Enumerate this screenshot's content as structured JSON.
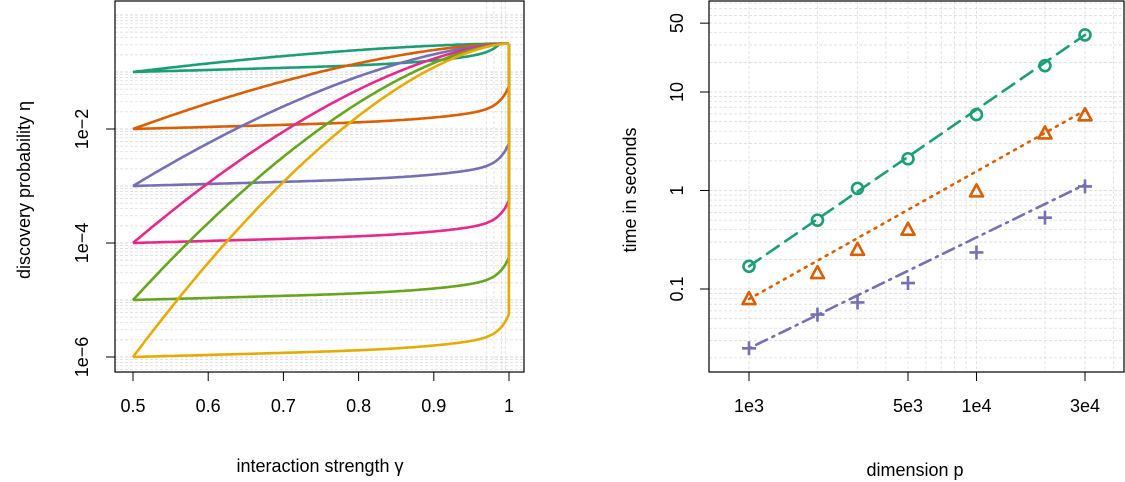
{
  "chart_data": [
    {
      "type": "line",
      "title": "",
      "xlabel": "interaction strength γ",
      "ylabel": "discovery probability η",
      "xlim": [
        0.5,
        1.0
      ],
      "ylim_log10": [
        -6,
        -0.5
      ],
      "y_scale": "log",
      "grid": true,
      "x_ticks": [
        0.5,
        0.6,
        0.7,
        0.8,
        0.9,
        1.0
      ],
      "x_tick_labels": [
        "0.5",
        "0.6",
        "0.7",
        "0.8",
        "0.9",
        "1"
      ],
      "y_ticks_log10": [
        -6,
        -4,
        -2
      ],
      "y_tick_labels": [
        "1e−6",
        "1e−4",
        "1e−2"
      ],
      "series": [
        {
          "color": "#1b9e77",
          "start_log10": -1,
          "lower_values_at_gamma": [
            [
              0.5,
              0.1
            ],
            [
              0.9,
              0.14
            ],
            [
              0.99,
              0.3
            ],
            [
              1.0,
              0.316
            ]
          ],
          "upper_values_at_gamma": [
            [
              0.5,
              0.1
            ],
            [
              0.75,
              0.17
            ],
            [
              1.0,
              0.316
            ]
          ]
        },
        {
          "color": "#d95f02",
          "start_log10": -2,
          "lower_values_at_gamma": [
            [
              0.5,
              0.01
            ],
            [
              0.9,
              0.017
            ],
            [
              0.99,
              0.05
            ],
            [
              1.0,
              0.316
            ]
          ],
          "upper_values_at_gamma": [
            [
              0.5,
              0.01
            ],
            [
              0.75,
              0.06
            ],
            [
              1.0,
              0.316
            ]
          ]
        },
        {
          "color": "#7570b3",
          "start_log10": -3,
          "lower_values_at_gamma": [
            [
              0.5,
              0.001
            ],
            [
              0.9,
              0.0017
            ],
            [
              0.99,
              0.005
            ],
            [
              1.0,
              0.316
            ]
          ],
          "upper_values_at_gamma": [
            [
              0.5,
              0.001
            ],
            [
              0.75,
              0.025
            ],
            [
              1.0,
              0.316
            ]
          ]
        },
        {
          "color": "#e7298a",
          "start_log10": -4,
          "lower_values_at_gamma": [
            [
              0.5,
              0.0001
            ],
            [
              0.9,
              0.00017
            ],
            [
              0.99,
              0.0005
            ],
            [
              1.0,
              0.316
            ]
          ],
          "upper_values_at_gamma": [
            [
              0.5,
              0.0001
            ],
            [
              0.75,
              0.009
            ],
            [
              1.0,
              0.316
            ]
          ]
        },
        {
          "color": "#66a61e",
          "start_log10": -5,
          "lower_values_at_gamma": [
            [
              0.5,
              1e-05
            ],
            [
              0.9,
              1.7e-05
            ],
            [
              0.99,
              5e-05
            ],
            [
              1.0,
              0.316
            ]
          ],
          "upper_values_at_gamma": [
            [
              0.5,
              1e-05
            ],
            [
              0.75,
              0.003
            ],
            [
              1.0,
              0.316
            ]
          ]
        },
        {
          "color": "#e6ab02",
          "start_log10": -6,
          "lower_values_at_gamma": [
            [
              0.5,
              1e-06
            ],
            [
              0.9,
              1.7e-06
            ],
            [
              0.99,
              5e-06
            ],
            [
              1.0,
              0.316
            ]
          ],
          "upper_values_at_gamma": [
            [
              0.5,
              1e-06
            ],
            [
              0.75,
              0.001
            ],
            [
              1.0,
              0.316
            ]
          ]
        }
      ]
    },
    {
      "type": "scatter",
      "title": "",
      "xlabel": "dimension p",
      "ylabel": "time in seconds",
      "x_scale": "log",
      "y_scale": "log",
      "grid": true,
      "xlim": [
        1000,
        30000
      ],
      "ylim": [
        0.02,
        60
      ],
      "x_ticks": [
        1000,
        5000,
        10000,
        30000
      ],
      "x_tick_labels": [
        "1e3",
        "5e3",
        "1e4",
        "3e4"
      ],
      "y_ticks": [
        0.1,
        1,
        10,
        50
      ],
      "y_tick_labels": [
        "0.1",
        "1",
        "10",
        "50"
      ],
      "x": [
        1000,
        2000,
        3000,
        5000,
        10000,
        20000,
        30000
      ],
      "series": [
        {
          "color": "#1b9e77",
          "marker": "circle",
          "line": "dashed",
          "values": [
            0.17,
            0.5,
            1.05,
            2.1,
            5.9,
            18.5,
            38
          ],
          "fit": [
            0.17,
            38
          ]
        },
        {
          "color": "#d95f02",
          "marker": "triangle",
          "line": "dotted",
          "values": [
            0.079,
            0.145,
            0.25,
            0.4,
            0.98,
            3.8,
            5.8
          ],
          "fit": [
            0.079,
            6.5
          ]
        },
        {
          "color": "#7570b3",
          "marker": "plus",
          "line": "dotdash",
          "values": [
            0.025,
            0.055,
            0.073,
            0.115,
            0.235,
            0.53,
            1.1
          ],
          "fit": [
            0.025,
            1.15
          ]
        }
      ]
    }
  ]
}
